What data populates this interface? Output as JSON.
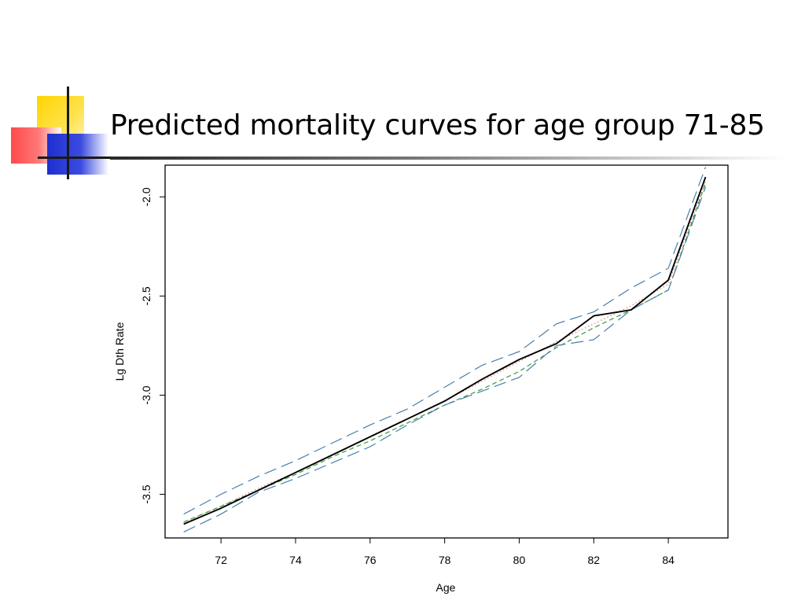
{
  "slide": {
    "title": "Predicted mortality curves for age group 71-85"
  },
  "chart_data": {
    "type": "line",
    "title": "",
    "xlabel": "Age",
    "ylabel": "Lg Dth Rate",
    "xlim": [
      70.5,
      85.6
    ],
    "ylim": [
      -3.72,
      -1.84
    ],
    "x_ticks": [
      72,
      74,
      76,
      78,
      80,
      82,
      84
    ],
    "y_ticks": [
      -3.5,
      -3.0,
      -2.5,
      -2.0
    ],
    "y_tick_labels": [
      "-3.5",
      "-3.0",
      "-2.5",
      "-2.0"
    ],
    "grid": false,
    "legend": "none",
    "x": [
      71,
      72,
      73,
      74,
      75,
      76,
      77,
      78,
      79,
      80,
      81,
      82,
      83,
      84,
      85
    ],
    "series": [
      {
        "style": "solid",
        "color": "#000000",
        "values": [
          -3.65,
          -3.57,
          -3.48,
          -3.39,
          -3.3,
          -3.21,
          -3.12,
          -3.03,
          -2.92,
          -2.82,
          -2.74,
          -2.6,
          -2.57,
          -2.42,
          -1.9
        ]
      },
      {
        "style": "dotted",
        "color": "#d98080",
        "values": [
          -3.64,
          -3.56,
          -3.47,
          -3.39,
          -3.3,
          -3.21,
          -3.12,
          -3.03,
          -2.93,
          -2.83,
          -2.73,
          -2.64,
          -2.55,
          -2.44,
          -1.92
        ]
      },
      {
        "style": "dashed",
        "color": "#3a9a3a",
        "values": [
          -3.64,
          -3.56,
          -3.48,
          -3.4,
          -3.31,
          -3.23,
          -3.14,
          -3.05,
          -2.97,
          -2.88,
          -2.76,
          -2.66,
          -2.57,
          -2.47,
          -1.93
        ]
      },
      {
        "style": "longdash",
        "color": "#4a7fae",
        "values": [
          -3.6,
          -3.5,
          -3.41,
          -3.33,
          -3.24,
          -3.15,
          -3.07,
          -2.96,
          -2.85,
          -2.78,
          -2.64,
          -2.58,
          -2.46,
          -2.36,
          -1.85
        ]
      },
      {
        "style": "longdash",
        "color": "#4a7fae",
        "values": [
          -3.69,
          -3.6,
          -3.49,
          -3.42,
          -3.34,
          -3.26,
          -3.15,
          -3.05,
          -2.98,
          -2.91,
          -2.75,
          -2.72,
          -2.57,
          -2.47,
          -1.95
        ]
      }
    ]
  }
}
